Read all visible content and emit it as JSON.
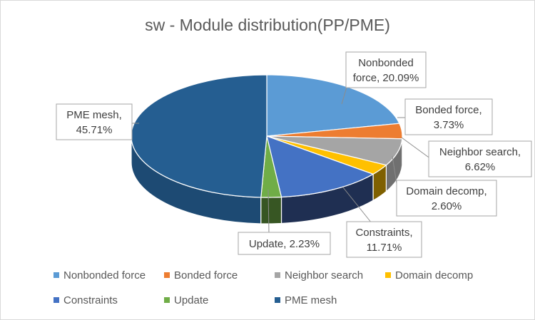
{
  "chart_data": {
    "type": "pie",
    "title": "sw - Module distribution(PP/PME)",
    "legend_position": "bottom",
    "slices": [
      {
        "name": "Nonbonded force",
        "value": 20.09,
        "label_line1": "Nonbonded",
        "label_line2": "force, 20.09%",
        "color": "#5b9bd5",
        "side": "#3e6f9e"
      },
      {
        "name": "Bonded force",
        "value": 3.73,
        "label_line1": "Bonded force,",
        "label_line2": "3.73%",
        "color": "#ed7d31",
        "side": "#a9561f"
      },
      {
        "name": "Neighbor search",
        "value": 6.62,
        "label_line1": "Neighbor search,",
        "label_line2": "6.62%",
        "color": "#a5a5a5",
        "side": "#707070"
      },
      {
        "name": "Domain decomp",
        "value": 2.6,
        "label_line1": "Domain decomp,",
        "label_line2": "2.60%",
        "color": "#ffc000",
        "side": "#7f6000"
      },
      {
        "name": "Constraints",
        "value": 11.71,
        "label_line1": "Constraints,",
        "label_line2": "11.71%",
        "color": "#4472c4",
        "side": "#1f2f52"
      },
      {
        "name": "Update",
        "value": 2.23,
        "label_line1": "Update, 2.23%",
        "label_line2": "",
        "color": "#70ad47",
        "side": "#375623"
      },
      {
        "name": "PME mesh",
        "value": 45.71,
        "label_line1": "PME mesh,",
        "label_line2": "45.71%",
        "color": "#255e91",
        "side": "#1d4a73"
      }
    ]
  }
}
